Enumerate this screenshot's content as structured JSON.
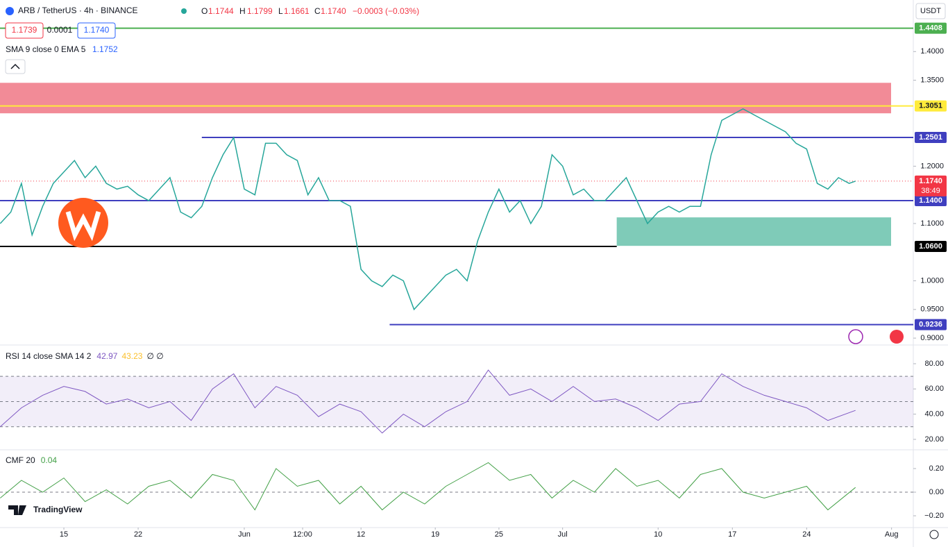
{
  "header": {
    "symbol": "ARB / TetherUS · 4h · BINANCE",
    "o_label": "O",
    "o": "1.1744",
    "h_label": "H",
    "h": "1.1799",
    "l_label": "L",
    "l": "1.1661",
    "c_label": "C",
    "c": "1.1740",
    "change": "−0.0003 (−0.03%)",
    "bid": "1.1739",
    "spread": "0.0001",
    "ask": "1.1740",
    "indicator": "SMA 9 close 0 EMA 5",
    "indicator_value": "1.1752",
    "currency": "USDT",
    "brand": "TradingView",
    "countdown": "38:49"
  },
  "chart_data": [
    {
      "type": "line",
      "color": "#26a69a",
      "x": [
        9,
        10,
        11,
        12,
        13,
        14,
        15,
        16,
        17,
        18,
        19,
        20,
        21,
        22,
        23,
        24,
        25,
        26,
        27,
        28,
        29,
        30,
        31,
        32,
        33,
        34,
        35,
        36,
        37,
        38,
        39,
        40,
        41,
        42,
        43,
        44,
        45,
        46,
        47,
        48,
        49,
        50,
        51,
        52,
        53,
        54,
        55,
        56,
        57,
        58,
        59,
        60,
        61,
        62,
        63,
        64,
        65,
        66,
        67,
        68,
        69,
        70,
        71,
        72,
        73,
        74,
        75,
        76,
        77,
        78,
        79,
        80,
        81,
        82,
        83,
        84,
        85,
        86,
        87,
        88,
        89,
        89.6
      ],
      "values": [
        1.1,
        1.12,
        1.17,
        1.08,
        1.13,
        1.17,
        1.19,
        1.21,
        1.18,
        1.2,
        1.17,
        1.16,
        1.165,
        1.15,
        1.14,
        1.16,
        1.18,
        1.12,
        1.11,
        1.13,
        1.18,
        1.22,
        1.25,
        1.16,
        1.15,
        1.24,
        1.24,
        1.22,
        1.21,
        1.15,
        1.18,
        1.14,
        1.14,
        1.13,
        1.02,
        1.0,
        0.99,
        1.01,
        1.0,
        0.95,
        0.97,
        0.99,
        1.01,
        1.02,
        1.0,
        1.07,
        1.12,
        1.16,
        1.12,
        1.14,
        1.1,
        1.13,
        1.22,
        1.2,
        1.15,
        1.16,
        1.14,
        1.14,
        1.16,
        1.18,
        1.14,
        1.1,
        1.12,
        1.13,
        1.12,
        1.13,
        1.13,
        1.22,
        1.28,
        1.29,
        1.3,
        1.29,
        1.28,
        1.27,
        1.26,
        1.24,
        1.23,
        1.17,
        1.16,
        1.18,
        1.17,
        1.174
      ],
      "xlim": [
        8.98,
        95.05
      ],
      "ylim": [
        0.888,
        1.49
      ],
      "yticks": [
        {
          "value": 1.4,
          "label": "1.4000"
        },
        {
          "value": 1.35,
          "label": "1.3500"
        },
        {
          "value": 1.2,
          "label": "1.2000"
        },
        {
          "value": 1.1,
          "label": "1.1000"
        },
        {
          "value": 1.0,
          "label": "1.0000"
        },
        {
          "value": 0.95,
          "label": "0.9500"
        },
        {
          "value": 0.9,
          "label": "0.9000"
        }
      ],
      "xticks": [
        {
          "value": 15,
          "label": "15"
        },
        {
          "value": 22,
          "label": "22"
        },
        {
          "value": 32,
          "label": "Jun"
        },
        {
          "value": 37.5,
          "label": "12:00"
        },
        {
          "value": 43,
          "label": "12"
        },
        {
          "value": 50,
          "label": "19"
        },
        {
          "value": 56,
          "label": "25"
        },
        {
          "value": 62,
          "label": "Jul"
        },
        {
          "value": 71,
          "label": "10"
        },
        {
          "value": 78,
          "label": "17"
        },
        {
          "value": 85,
          "label": "24"
        },
        {
          "value": 93,
          "label": "Aug"
        }
      ],
      "zones": [
        {
          "ymin": 1.2923,
          "ymax": 1.3455,
          "color": "#f28b97"
        },
        {
          "ymin": 1.061,
          "ymax": 1.1107,
          "xmin": 67.1,
          "color": "#7fcbb8"
        }
      ],
      "levels": [
        {
          "value": 1.4408,
          "label": "1.4408",
          "color": "#4caf50"
        },
        {
          "value": 1.3051,
          "label": "1.3051",
          "color": "#ffeb3b"
        },
        {
          "value": 1.2501,
          "label": "1.2501",
          "color": "#3f3fbf",
          "xmin": 28
        },
        {
          "value": 1.14,
          "label": "1.1400",
          "color": "#3f3fbf"
        },
        {
          "value": 1.06,
          "label": "1.0600",
          "color": "#000000",
          "xmax": 67.1
        },
        {
          "value": 0.9236,
          "label": "0.9236",
          "color": "#3f3fbf",
          "xmin": 45.7
        },
        {
          "value": 1.174,
          "label": "1.1740",
          "color": "#f23645",
          "dotted": true
        }
      ]
    },
    {
      "type": "line",
      "title": "RSI 14 close SMA 14 2",
      "legend_values": [
        "42.97",
        "43.23"
      ],
      "legend_extra": "∅ ∅",
      "color": "#7e57c2",
      "x": [
        9,
        11,
        13,
        15,
        17,
        19,
        21,
        23,
        25,
        27,
        29,
        31,
        33,
        35,
        37,
        39,
        41,
        43,
        45,
        47,
        49,
        51,
        53,
        55,
        57,
        59,
        61,
        63,
        65,
        67,
        69,
        71,
        73,
        75,
        77,
        79,
        81,
        83,
        85,
        87,
        89.6
      ],
      "values": [
        30,
        45,
        55,
        62,
        58,
        48,
        52,
        45,
        50,
        35,
        60,
        72,
        45,
        62,
        55,
        38,
        48,
        42,
        25,
        40,
        30,
        42,
        50,
        75,
        55,
        60,
        50,
        62,
        50,
        52,
        45,
        35,
        48,
        50,
        72,
        62,
        55,
        50,
        45,
        35,
        42.97
      ],
      "ylim": [
        11.7,
        93.2
      ],
      "bands": [
        30,
        50,
        70
      ],
      "yticks": [
        {
          "value": 80,
          "label": "80.00"
        },
        {
          "value": 60,
          "label": "60.00"
        },
        {
          "value": 40,
          "label": "40.00"
        },
        {
          "value": 20,
          "label": "20.00"
        }
      ]
    },
    {
      "type": "line",
      "title": "CMF 20",
      "legend_values": [
        "0.04"
      ],
      "color": "#43a047",
      "x": [
        9,
        11,
        13,
        15,
        17,
        19,
        21,
        23,
        25,
        27,
        29,
        31,
        33,
        35,
        37,
        39,
        41,
        43,
        45,
        47,
        49,
        51,
        53,
        55,
        57,
        59,
        61,
        63,
        65,
        67,
        69,
        71,
        73,
        75,
        77,
        79,
        81,
        83,
        85,
        87,
        89.6
      ],
      "values": [
        -0.05,
        0.1,
        0.0,
        0.12,
        -0.08,
        0.02,
        -0.1,
        0.05,
        0.1,
        -0.05,
        0.15,
        0.1,
        -0.15,
        0.2,
        0.05,
        0.1,
        -0.1,
        0.05,
        -0.15,
        0.0,
        -0.1,
        0.05,
        0.15,
        0.25,
        0.1,
        0.15,
        -0.05,
        0.1,
        0.0,
        0.2,
        0.05,
        0.1,
        -0.05,
        0.15,
        0.2,
        0.0,
        -0.05,
        0.0,
        0.05,
        -0.15,
        0.04
      ],
      "ylim": [
        -0.288,
        0.347
      ],
      "hlines": [
        0
      ],
      "yticks": [
        {
          "value": 0.2,
          "label": "0.20"
        },
        {
          "value": 0,
          "label": "0.00"
        },
        {
          "value": -0.2,
          "label": "−0.20"
        }
      ]
    }
  ]
}
